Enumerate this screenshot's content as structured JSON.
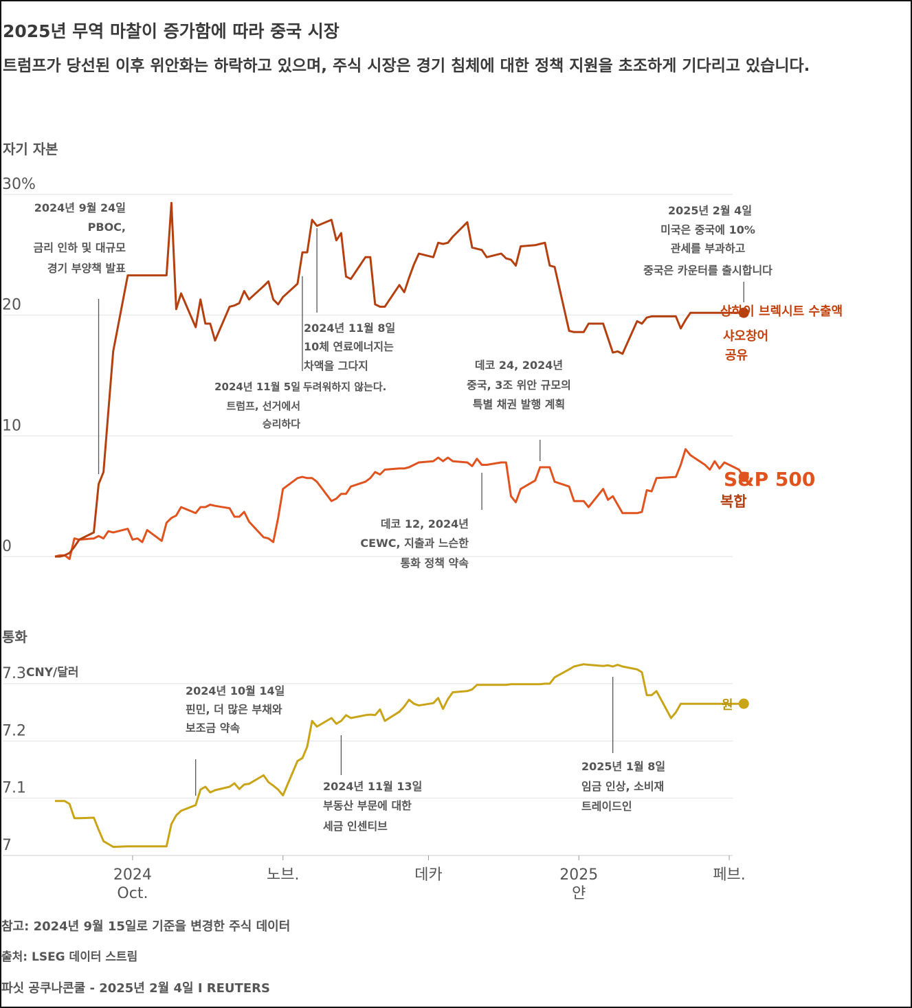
{
  "header": {
    "title": "2025년 무역 마찰이 증가함에 따라 중국 시장",
    "subtitle": "트럼프가 당선된 이후 위안화는 하락하고 있으며, 주식 시장은 경기 침체에 대한 정책 지원을 초조하게 기다리고 있습니다."
  },
  "footer": {
    "note": "참고: 2024년 9월 15일로 기준을 변경한 주식 데이터",
    "source": "출처: LSEG 데이터 스트림",
    "credit": "파싯 공쿠나콘쿨 - 2025년 2월 4일 I REUTERS"
  },
  "chart_data": [
    {
      "type": "line",
      "section_label": "자기 자본",
      "ylim": [
        0,
        30
      ],
      "y_ticks": [
        "30%",
        "20",
        "10",
        "0"
      ],
      "x_ticks": [
        {
          "line1": "2024",
          "line2": "Oct."
        },
        {
          "line1": "노브.",
          "line2": ""
        },
        {
          "line1": "데카",
          "line2": ""
        },
        {
          "line1": "2025",
          "line2": "얀"
        },
        {
          "line1": "페브.",
          "line2": ""
        }
      ],
      "series": [
        {
          "name": "상하이 브렉시트 수출액 샤오창어 공유",
          "name_lines": [
            "상하이 브렉시트 수출액",
            "샤오창어",
            "공유"
          ],
          "color": "#b5400f",
          "x": [
            "2024-09-15",
            "2024-09-16",
            "2024-09-17",
            "2024-09-18",
            "2024-09-19",
            "2024-09-20",
            "2024-09-23",
            "2024-09-24",
            "2024-09-25",
            "2024-09-26",
            "2024-09-27",
            "2024-09-30",
            "2024-10-08",
            "2024-10-09",
            "2024-10-10",
            "2024-10-11",
            "2024-10-14",
            "2024-10-15",
            "2024-10-16",
            "2024-10-17",
            "2024-10-18",
            "2024-10-21",
            "2024-10-22",
            "2024-10-23",
            "2024-10-24",
            "2024-10-25",
            "2024-10-28",
            "2024-10-29",
            "2024-10-30",
            "2024-10-31",
            "2024-11-01",
            "2024-11-04",
            "2024-11-05",
            "2024-11-06",
            "2024-11-07",
            "2024-11-08",
            "2024-11-11",
            "2024-11-12",
            "2024-11-13",
            "2024-11-14",
            "2024-11-15",
            "2024-11-18",
            "2024-11-19",
            "2024-11-20",
            "2024-11-21",
            "2024-11-22",
            "2024-11-25",
            "2024-11-26",
            "2024-11-27",
            "2024-11-28",
            "2024-11-29",
            "2024-12-02",
            "2024-12-03",
            "2024-12-04",
            "2024-12-05",
            "2024-12-06",
            "2024-12-09",
            "2024-12-10",
            "2024-12-11",
            "2024-12-12",
            "2024-12-13",
            "2024-12-16",
            "2024-12-17",
            "2024-12-18",
            "2024-12-19",
            "2024-12-20",
            "2024-12-23",
            "2024-12-24",
            "2024-12-25",
            "2024-12-26",
            "2024-12-27",
            "2024-12-30",
            "2024-12-31",
            "2025-01-02",
            "2025-01-03",
            "2025-01-06",
            "2025-01-07",
            "2025-01-08",
            "2025-01-09",
            "2025-01-10",
            "2025-01-13",
            "2025-01-14",
            "2025-01-15",
            "2025-01-16",
            "2025-01-17",
            "2025-01-20",
            "2025-01-21",
            "2025-01-22",
            "2025-01-23",
            "2025-01-24",
            "2025-01-27",
            "2025-02-04"
          ],
          "values": [
            0,
            0,
            0.1,
            0.3,
            0.8,
            1.4,
            2,
            6,
            7,
            12,
            17,
            23.3,
            23.3,
            29.3,
            20.5,
            21.8,
            19,
            21.3,
            19.3,
            19.3,
            17.9,
            20.7,
            20.8,
            21,
            22,
            21.3,
            22.4,
            22.8,
            21.3,
            20.9,
            21.5,
            22.6,
            25.2,
            25.2,
            27.9,
            27.4,
            27.9,
            26.2,
            26.8,
            23.2,
            23,
            24.8,
            24.8,
            20.9,
            20.7,
            20.7,
            22.5,
            21.9,
            23.1,
            24.2,
            25.1,
            24.8,
            26,
            25.9,
            26,
            26.5,
            27.7,
            25.6,
            25.5,
            25.4,
            24.8,
            25.1,
            24.7,
            24.6,
            24.1,
            25.7,
            25.8,
            25.9,
            26,
            24.1,
            24,
            18.7,
            18.6,
            18.6,
            19.3,
            19.3,
            18.1,
            16.9,
            17,
            16.8,
            19.5,
            19.3,
            19.8,
            19.9,
            19.9,
            19.9,
            19.9,
            18.9,
            19.6,
            20.2,
            20.2,
            20.2
          ]
        },
        {
          "name": "S&P 500 복합",
          "name_lines": [
            "S&P 500",
            "복합"
          ],
          "color": "#e0531f",
          "x": [
            "2024-09-15",
            "2024-09-16",
            "2024-09-17",
            "2024-09-18",
            "2024-09-19",
            "2024-09-20",
            "2024-09-23",
            "2024-09-24",
            "2024-09-25",
            "2024-09-26",
            "2024-09-27",
            "2024-09-30",
            "2024-10-01",
            "2024-10-02",
            "2024-10-03",
            "2024-10-04",
            "2024-10-07",
            "2024-10-08",
            "2024-10-09",
            "2024-10-10",
            "2024-10-11",
            "2024-10-14",
            "2024-10-15",
            "2024-10-16",
            "2024-10-17",
            "2024-10-18",
            "2024-10-21",
            "2024-10-22",
            "2024-10-23",
            "2024-10-24",
            "2024-10-25",
            "2024-10-28",
            "2024-10-29",
            "2024-10-30",
            "2024-10-31",
            "2024-11-01",
            "2024-11-04",
            "2024-11-05",
            "2024-11-06",
            "2024-11-07",
            "2024-11-08",
            "2024-11-11",
            "2024-11-12",
            "2024-11-13",
            "2024-11-14",
            "2024-11-15",
            "2024-11-18",
            "2024-11-19",
            "2024-11-20",
            "2024-11-21",
            "2024-11-22",
            "2024-11-25",
            "2024-11-26",
            "2024-11-27",
            "2024-11-29",
            "2024-12-02",
            "2024-12-03",
            "2024-12-04",
            "2024-12-05",
            "2024-12-06",
            "2024-12-09",
            "2024-12-10",
            "2024-12-11",
            "2024-12-12",
            "2024-12-13",
            "2024-12-16",
            "2024-12-17",
            "2024-12-18",
            "2024-12-19",
            "2024-12-20",
            "2024-12-23",
            "2024-12-24",
            "2024-12-26",
            "2024-12-27",
            "2024-12-30",
            "2024-12-31",
            "2025-01-02",
            "2025-01-03",
            "2025-01-06",
            "2025-01-07",
            "2025-01-08",
            "2025-01-10",
            "2025-01-13",
            "2025-01-14",
            "2025-01-15",
            "2025-01-16",
            "2025-01-17",
            "2025-01-21",
            "2025-01-22",
            "2025-01-23",
            "2025-01-24",
            "2025-01-27",
            "2025-01-28",
            "2025-01-29",
            "2025-01-30",
            "2025-01-31",
            "2025-02-03",
            "2025-02-04"
          ],
          "values": [
            0,
            0.1,
            0.1,
            -0.2,
            1.5,
            1.4,
            1.5,
            1.7,
            1.5,
            2.1,
            2,
            2.3,
            1.4,
            1.5,
            1.2,
            2.2,
            1.3,
            2.8,
            3.2,
            3.4,
            4.1,
            3.6,
            4.1,
            4.1,
            4.3,
            4.2,
            4,
            3.3,
            3.3,
            3.7,
            2.9,
            1.6,
            1.5,
            1.2,
            3.2,
            5.6,
            6.5,
            6.6,
            6.5,
            6.5,
            6.2,
            4.6,
            4.8,
            5.2,
            5.2,
            5.8,
            6.2,
            6.5,
            7,
            6.8,
            7.2,
            7.3,
            7.3,
            7.4,
            7.8,
            7.9,
            8.2,
            7.9,
            8.2,
            7.9,
            7.8,
            7.5,
            8.1,
            7.6,
            7.6,
            7.8,
            7.8,
            5,
            4.5,
            5.6,
            6.3,
            7.4,
            7.4,
            6.2,
            5.8,
            4.6,
            4.6,
            4.1,
            5.6,
            4.7,
            5,
            3.6,
            3.6,
            3.7,
            5.5,
            5.4,
            6.5,
            6.6,
            7.6,
            8.9,
            8.4,
            7.6,
            7.2,
            7.9,
            7.3,
            7.8,
            7.2,
            6.6
          ]
        }
      ],
      "annotations": [
        {
          "date": "2024-09-24",
          "lines": [
            "2024년 9월 24일",
            "PBOC,",
            "금리 인하 및 대규모",
            "경기 부양책 발표"
          ]
        },
        {
          "date": "2024-11-05",
          "lines": [
            "2024년 11월 5일",
            "트럼프, 선거에서",
            "승리하다"
          ]
        },
        {
          "date": "2024-11-08",
          "lines": [
            "2024년 11월 8일",
            "10체 연료에너지는",
            "차액을 그다지",
            "두려워하지 않는다."
          ]
        },
        {
          "date": "2024-12-12",
          "lines": [
            "데코 12, 2024년",
            "CEWC, 지출과 느슨한",
            "통화 정책 약속"
          ]
        },
        {
          "date": "2024-12-24",
          "lines": [
            "데코 24, 2024년",
            "중국, 3조 위안 규모의",
            "특별 채권 발행 계획"
          ]
        },
        {
          "date": "2025-02-04",
          "lines": [
            "2025년 2월 4일",
            "미국은 중국에 10%",
            "관세를 부과하고",
            "중국은 카운터를 출시합니다"
          ]
        }
      ]
    },
    {
      "type": "line",
      "section_label": "통화",
      "unit": "CNY/달러",
      "ylim": [
        7.0,
        7.3
      ],
      "y_ticks": [
        "7.3",
        "7.2",
        "7.1",
        "7"
      ],
      "series": [
        {
          "name": "원",
          "color": "#c9a417",
          "x": [
            "2024-09-15",
            "2024-09-16",
            "2024-09-17",
            "2024-09-18",
            "2024-09-19",
            "2024-09-20",
            "2024-09-23",
            "2024-09-24",
            "2024-09-25",
            "2024-09-26",
            "2024-09-27",
            "2024-09-30",
            "2024-10-08",
            "2024-10-09",
            "2024-10-10",
            "2024-10-11",
            "2024-10-14",
            "2024-10-15",
            "2024-10-16",
            "2024-10-17",
            "2024-10-18",
            "2024-10-21",
            "2024-10-22",
            "2024-10-23",
            "2024-10-24",
            "2024-10-25",
            "2024-10-28",
            "2024-10-29",
            "2024-10-30",
            "2024-10-31",
            "2024-11-01",
            "2024-11-04",
            "2024-11-05",
            "2024-11-06",
            "2024-11-07",
            "2024-11-08",
            "2024-11-11",
            "2024-11-12",
            "2024-11-13",
            "2024-11-14",
            "2024-11-15",
            "2024-11-18",
            "2024-11-19",
            "2024-11-20",
            "2024-11-21",
            "2024-11-22",
            "2024-11-25",
            "2024-11-26",
            "2024-11-27",
            "2024-11-28",
            "2024-11-29",
            "2024-12-02",
            "2024-12-03",
            "2024-12-04",
            "2024-12-05",
            "2024-12-06",
            "2024-12-09",
            "2024-12-10",
            "2024-12-11",
            "2024-12-12",
            "2024-12-13",
            "2024-12-16",
            "2024-12-17",
            "2024-12-18",
            "2024-12-19",
            "2024-12-20",
            "2024-12-23",
            "2024-12-24",
            "2024-12-25",
            "2024-12-26",
            "2024-12-27",
            "2024-12-30",
            "2024-12-31",
            "2025-01-02",
            "2025-01-03",
            "2025-01-06",
            "2025-01-07",
            "2025-01-08",
            "2025-01-09",
            "2025-01-10",
            "2025-01-13",
            "2025-01-14",
            "2025-01-15",
            "2025-01-16",
            "2025-01-17",
            "2025-01-20",
            "2025-01-21",
            "2025-01-22",
            "2025-01-23",
            "2025-01-24",
            "2025-01-27",
            "2025-02-04"
          ],
          "values": [
            7.095,
            7.095,
            7.095,
            7.09,
            7.065,
            7.065,
            7.066,
            7.045,
            7.025,
            7.02,
            7.015,
            7.016,
            7.016,
            7.055,
            7.07,
            7.078,
            7.088,
            7.115,
            7.12,
            7.11,
            7.114,
            7.12,
            7.126,
            7.116,
            7.124,
            7.125,
            7.14,
            7.128,
            7.122,
            7.115,
            7.105,
            7.165,
            7.17,
            7.19,
            7.235,
            7.225,
            7.24,
            7.23,
            7.235,
            7.245,
            7.24,
            7.245,
            7.246,
            7.245,
            7.255,
            7.235,
            7.251,
            7.26,
            7.272,
            7.265,
            7.262,
            7.266,
            7.275,
            7.256,
            7.273,
            7.285,
            7.287,
            7.29,
            7.298,
            7.298,
            7.298,
            7.298,
            7.298,
            7.299,
            7.299,
            7.299,
            7.299,
            7.299,
            7.3,
            7.3,
            7.311,
            7.325,
            7.33,
            7.334,
            7.333,
            7.331,
            7.332,
            7.33,
            7.333,
            7.33,
            7.325,
            7.32,
            7.28,
            7.28,
            7.287,
            7.24,
            7.25,
            7.265,
            7.265,
            7.265,
            7.265,
            7.265
          ]
        }
      ],
      "annotations": [
        {
          "date": "2024-10-14",
          "lines": [
            "2024년 10월 14일",
            "핀민, 더 많은 부채와",
            "보조금 약속"
          ]
        },
        {
          "date": "2024-11-13",
          "lines": [
            "2024년 11월 13일",
            "부동산 부문에 대한",
            "세금 인센티브"
          ]
        },
        {
          "date": "2025-01-08",
          "lines": [
            "2025년 1월 8일",
            "임금 인상, 소비재",
            "트레이드인"
          ]
        }
      ]
    }
  ]
}
